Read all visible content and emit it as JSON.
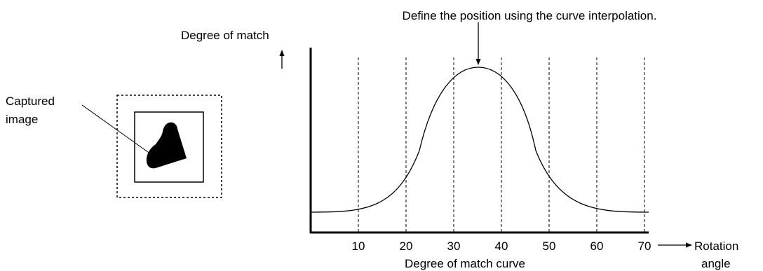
{
  "captured_image": {
    "label_line1": "Captured",
    "label_line2": "image"
  },
  "graph": {
    "title": "Define the position using the curve interpolation.",
    "y_label": "Degree of match",
    "x_label_line1": "Rotation",
    "x_label_line2": "angle",
    "caption": "Degree of match curve",
    "xticks": [
      10,
      20,
      30,
      40,
      50,
      60,
      70
    ]
  }
}
